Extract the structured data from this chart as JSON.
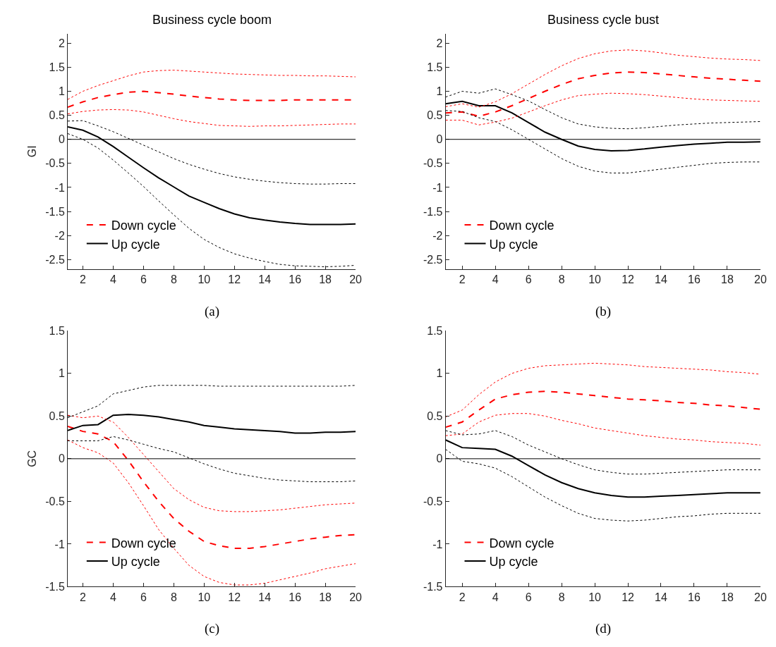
{
  "chart_data": [
    {
      "type": "line",
      "title": "Business cycle boom",
      "ylabel": "GI",
      "annotations": [
        "(a)"
      ],
      "x": [
        1,
        2,
        3,
        4,
        5,
        6,
        7,
        8,
        9,
        10,
        11,
        12,
        13,
        14,
        15,
        16,
        17,
        18,
        19,
        20
      ],
      "xlim": [
        1,
        20
      ],
      "xticks": [
        2,
        4,
        6,
        8,
        10,
        12,
        14,
        16,
        18,
        20
      ],
      "ylim": [
        -2.7,
        2.2
      ],
      "yticks": [
        -2.5,
        -2,
        -1.5,
        -1,
        -0.5,
        0,
        0.5,
        1,
        1.5,
        2
      ],
      "legend": "bottom left",
      "ref_lines": [
        {
          "axis": "y",
          "value": 0,
          "color": "#000000"
        }
      ],
      "series": [
        {
          "name": "Down cycle",
          "color": "#ff0000",
          "line_style": "dashed",
          "values": [
            0.67,
            0.78,
            0.87,
            0.93,
            0.98,
            1.0,
            0.97,
            0.94,
            0.9,
            0.87,
            0.84,
            0.82,
            0.81,
            0.81,
            0.81,
            0.82,
            0.82,
            0.82,
            0.82,
            0.82
          ]
        },
        {
          "name": "Up cycle",
          "color": "#000000",
          "line_style": "solid",
          "values": [
            0.26,
            0.19,
            0.05,
            -0.15,
            -0.37,
            -0.59,
            -0.8,
            -0.99,
            -1.18,
            -1.31,
            -1.44,
            -1.55,
            -1.63,
            -1.68,
            -1.72,
            -1.75,
            -1.77,
            -1.77,
            -1.77,
            -1.76
          ]
        },
        {
          "color": "#ff0000",
          "line_style": "dotted",
          "values": [
            0.83,
            1.0,
            1.12,
            1.22,
            1.32,
            1.4,
            1.43,
            1.44,
            1.42,
            1.4,
            1.38,
            1.36,
            1.35,
            1.34,
            1.33,
            1.33,
            1.32,
            1.32,
            1.31,
            1.3
          ]
        },
        {
          "color": "#ff0000",
          "line_style": "dotted",
          "values": [
            0.53,
            0.58,
            0.61,
            0.62,
            0.61,
            0.57,
            0.5,
            0.43,
            0.37,
            0.33,
            0.29,
            0.28,
            0.27,
            0.28,
            0.28,
            0.29,
            0.3,
            0.31,
            0.32,
            0.32
          ]
        },
        {
          "color": "#000000",
          "line_style": "dotted",
          "values": [
            0.38,
            0.39,
            0.28,
            0.16,
            0.02,
            -0.12,
            -0.26,
            -0.4,
            -0.52,
            -0.62,
            -0.71,
            -0.78,
            -0.83,
            -0.87,
            -0.9,
            -0.92,
            -0.93,
            -0.93,
            -0.92,
            -0.92
          ]
        },
        {
          "color": "#000000",
          "line_style": "dotted",
          "values": [
            0.12,
            0.0,
            -0.18,
            -0.43,
            -0.7,
            -0.98,
            -1.28,
            -1.57,
            -1.85,
            -2.08,
            -2.25,
            -2.38,
            -2.47,
            -2.54,
            -2.6,
            -2.63,
            -2.64,
            -2.65,
            -2.64,
            -2.62
          ]
        }
      ]
    },
    {
      "type": "line",
      "title": "Business cycle bust",
      "annotations": [
        "(b)"
      ],
      "x": [
        1,
        2,
        3,
        4,
        5,
        6,
        7,
        8,
        9,
        10,
        11,
        12,
        13,
        14,
        15,
        16,
        17,
        18,
        19,
        20
      ],
      "xlim": [
        1,
        20
      ],
      "xticks": [
        2,
        4,
        6,
        8,
        10,
        12,
        14,
        16,
        18,
        20
      ],
      "ylim": [
        -2.7,
        2.2
      ],
      "yticks": [
        -2.5,
        -2,
        -1.5,
        -1,
        -0.5,
        0,
        0.5,
        1,
        1.5,
        2
      ],
      "legend": "bottom left",
      "ref_lines": [
        {
          "axis": "y",
          "value": 0,
          "color": "#000000"
        }
      ],
      "series": [
        {
          "name": "Down cycle",
          "color": "#ff0000",
          "line_style": "dashed",
          "values": [
            0.55,
            0.57,
            0.48,
            0.57,
            0.7,
            0.85,
            1.0,
            1.14,
            1.26,
            1.33,
            1.38,
            1.4,
            1.39,
            1.36,
            1.33,
            1.3,
            1.27,
            1.25,
            1.23,
            1.21
          ]
        },
        {
          "name": "Up cycle",
          "color": "#000000",
          "line_style": "solid",
          "values": [
            0.74,
            0.79,
            0.7,
            0.7,
            0.55,
            0.35,
            0.15,
            0.0,
            -0.14,
            -0.21,
            -0.24,
            -0.23,
            -0.2,
            -0.16,
            -0.13,
            -0.1,
            -0.08,
            -0.06,
            -0.06,
            -0.05
          ]
        },
        {
          "color": "#ff0000",
          "line_style": "dotted",
          "values": [
            0.68,
            0.74,
            0.67,
            0.78,
            0.95,
            1.15,
            1.35,
            1.53,
            1.68,
            1.78,
            1.84,
            1.86,
            1.84,
            1.8,
            1.75,
            1.72,
            1.69,
            1.67,
            1.66,
            1.64
          ]
        },
        {
          "color": "#ff0000",
          "line_style": "dotted",
          "values": [
            0.4,
            0.4,
            0.3,
            0.36,
            0.44,
            0.57,
            0.7,
            0.82,
            0.91,
            0.94,
            0.96,
            0.95,
            0.93,
            0.9,
            0.87,
            0.84,
            0.82,
            0.81,
            0.8,
            0.79
          ]
        },
        {
          "color": "#000000",
          "line_style": "dotted",
          "values": [
            0.88,
            1.0,
            0.96,
            1.05,
            0.93,
            0.8,
            0.62,
            0.45,
            0.32,
            0.26,
            0.23,
            0.22,
            0.24,
            0.27,
            0.3,
            0.32,
            0.34,
            0.35,
            0.36,
            0.37
          ]
        },
        {
          "color": "#000000",
          "line_style": "dotted",
          "values": [
            0.6,
            0.58,
            0.45,
            0.37,
            0.2,
            0.0,
            -0.2,
            -0.4,
            -0.56,
            -0.66,
            -0.7,
            -0.7,
            -0.66,
            -0.62,
            -0.58,
            -0.54,
            -0.5,
            -0.48,
            -0.47,
            -0.47
          ]
        }
      ]
    },
    {
      "type": "line",
      "ylabel": "GC",
      "annotations": [
        "(c)"
      ],
      "x": [
        1,
        2,
        3,
        4,
        5,
        6,
        7,
        8,
        9,
        10,
        11,
        12,
        13,
        14,
        15,
        16,
        17,
        18,
        19,
        20
      ],
      "xlim": [
        1,
        20
      ],
      "xticks": [
        2,
        4,
        6,
        8,
        10,
        12,
        14,
        16,
        18,
        20
      ],
      "ylim": [
        -1.5,
        1.5
      ],
      "yticks": [
        -1.5,
        -1,
        -0.5,
        0,
        0.5,
        1,
        1.5
      ],
      "legend": "bottom left",
      "ref_lines": [
        {
          "axis": "y",
          "value": 0,
          "color": "#000000"
        }
      ],
      "series": [
        {
          "name": "Down cycle",
          "color": "#ff0000",
          "line_style": "dashed",
          "values": [
            0.38,
            0.32,
            0.29,
            0.2,
            -0.02,
            -0.27,
            -0.5,
            -0.7,
            -0.85,
            -0.97,
            -1.02,
            -1.05,
            -1.05,
            -1.03,
            -1.0,
            -0.97,
            -0.94,
            -0.92,
            -0.9,
            -0.89
          ]
        },
        {
          "name": "Up cycle",
          "color": "#000000",
          "line_style": "solid",
          "values": [
            0.33,
            0.39,
            0.4,
            0.51,
            0.52,
            0.51,
            0.49,
            0.46,
            0.43,
            0.39,
            0.37,
            0.35,
            0.34,
            0.33,
            0.32,
            0.3,
            0.3,
            0.31,
            0.31,
            0.32
          ]
        },
        {
          "color": "#ff0000",
          "line_style": "dotted",
          "values": [
            0.51,
            0.48,
            0.5,
            0.43,
            0.25,
            0.05,
            -0.15,
            -0.35,
            -0.48,
            -0.57,
            -0.61,
            -0.62,
            -0.62,
            -0.61,
            -0.6,
            -0.58,
            -0.56,
            -0.54,
            -0.53,
            -0.52
          ]
        },
        {
          "color": "#ff0000",
          "line_style": "dotted",
          "values": [
            0.22,
            0.13,
            0.07,
            -0.05,
            -0.28,
            -0.55,
            -0.83,
            -1.05,
            -1.25,
            -1.38,
            -1.45,
            -1.48,
            -1.48,
            -1.46,
            -1.42,
            -1.38,
            -1.34,
            -1.29,
            -1.26,
            -1.23
          ]
        },
        {
          "color": "#000000",
          "line_style": "dotted",
          "values": [
            0.48,
            0.55,
            0.62,
            0.76,
            0.8,
            0.84,
            0.86,
            0.86,
            0.86,
            0.86,
            0.85,
            0.85,
            0.85,
            0.85,
            0.85,
            0.85,
            0.85,
            0.85,
            0.85,
            0.86
          ]
        },
        {
          "color": "#000000",
          "line_style": "dotted",
          "values": [
            0.21,
            0.21,
            0.21,
            0.26,
            0.22,
            0.17,
            0.12,
            0.08,
            0.01,
            -0.06,
            -0.12,
            -0.17,
            -0.2,
            -0.23,
            -0.25,
            -0.26,
            -0.27,
            -0.27,
            -0.27,
            -0.26
          ]
        }
      ]
    },
    {
      "type": "line",
      "annotations": [
        "(d)"
      ],
      "x": [
        1,
        2,
        3,
        4,
        5,
        6,
        7,
        8,
        9,
        10,
        11,
        12,
        13,
        14,
        15,
        16,
        17,
        18,
        19,
        20
      ],
      "xlim": [
        1,
        20
      ],
      "xticks": [
        2,
        4,
        6,
        8,
        10,
        12,
        14,
        16,
        18,
        20
      ],
      "ylim": [
        -1.5,
        1.5
      ],
      "yticks": [
        -1.5,
        -1,
        -0.5,
        0,
        0.5,
        1,
        1.5
      ],
      "legend": "bottom left",
      "ref_lines": [
        {
          "axis": "y",
          "value": 0,
          "color": "#000000"
        }
      ],
      "series": [
        {
          "name": "Down cycle",
          "color": "#ff0000",
          "line_style": "dashed",
          "values": [
            0.37,
            0.43,
            0.57,
            0.7,
            0.75,
            0.78,
            0.79,
            0.78,
            0.76,
            0.74,
            0.72,
            0.7,
            0.69,
            0.68,
            0.66,
            0.65,
            0.63,
            0.62,
            0.6,
            0.58
          ]
        },
        {
          "name": "Up cycle",
          "color": "#000000",
          "line_style": "solid",
          "values": [
            0.22,
            0.13,
            0.12,
            0.11,
            0.03,
            -0.08,
            -0.19,
            -0.28,
            -0.35,
            -0.4,
            -0.43,
            -0.45,
            -0.45,
            -0.44,
            -0.43,
            -0.42,
            -0.41,
            -0.4,
            -0.4,
            -0.4
          ]
        },
        {
          "color": "#ff0000",
          "line_style": "dotted",
          "values": [
            0.49,
            0.57,
            0.75,
            0.9,
            1.0,
            1.06,
            1.09,
            1.1,
            1.11,
            1.12,
            1.11,
            1.1,
            1.08,
            1.07,
            1.06,
            1.05,
            1.04,
            1.02,
            1.01,
            0.99
          ]
        },
        {
          "color": "#ff0000",
          "line_style": "dotted",
          "values": [
            0.27,
            0.29,
            0.43,
            0.51,
            0.53,
            0.53,
            0.5,
            0.45,
            0.41,
            0.36,
            0.33,
            0.3,
            0.27,
            0.25,
            0.23,
            0.22,
            0.2,
            0.19,
            0.18,
            0.16
          ]
        },
        {
          "color": "#000000",
          "line_style": "dotted",
          "values": [
            0.33,
            0.28,
            0.29,
            0.33,
            0.26,
            0.16,
            0.08,
            0.0,
            -0.07,
            -0.13,
            -0.16,
            -0.18,
            -0.18,
            -0.17,
            -0.16,
            -0.15,
            -0.14,
            -0.13,
            -0.13,
            -0.13
          ]
        },
        {
          "color": "#000000",
          "line_style": "dotted",
          "values": [
            0.11,
            -0.03,
            -0.06,
            -0.11,
            -0.21,
            -0.33,
            -0.45,
            -0.55,
            -0.64,
            -0.7,
            -0.72,
            -0.73,
            -0.72,
            -0.7,
            -0.68,
            -0.67,
            -0.65,
            -0.64,
            -0.64,
            -0.64
          ]
        }
      ]
    }
  ]
}
